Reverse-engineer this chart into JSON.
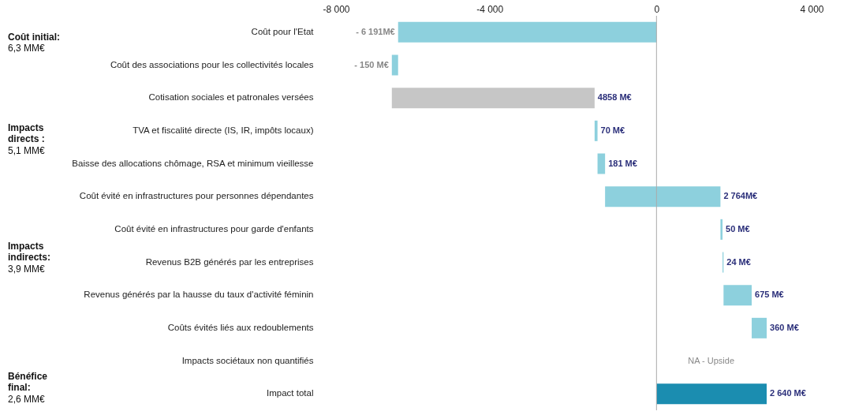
{
  "chart_data": {
    "type": "bar",
    "orientation": "horizontal",
    "categories": [
      "Coût pour l'Etat",
      "Coût des associations pour les collectivités locales",
      "Cotisation sociales et patronales versées",
      "TVA et fiscalité directe (IS, IR, impôts locaux)",
      "Baisse des allocations chômage, RSA et minimum vieillesse",
      "Coût évité en infrastructures pour personnes dépendantes",
      "Coût évité en infrastructures pour garde d'enfants",
      "Revenus B2B générés par les entreprises",
      "Revenus générés par la hausse du taux d'activité féminin",
      "Coûts évités liés aux redoublements",
      "Impacts sociétaux non quantifiés",
      "Impact total"
    ],
    "values": [
      -6191,
      -150,
      4858,
      70,
      181,
      2764,
      50,
      24,
      675,
      360,
      null,
      2640
    ],
    "base": [
      0,
      -6191,
      -6341,
      -1483,
      -1413,
      -1232,
      1532,
      1582,
      1606,
      2281,
      null,
      0
    ],
    "colors": [
      "#8dd0dd",
      "#8dd0dd",
      "#c6c6c6",
      "#8dd0dd",
      "#8dd0dd",
      "#8dd0dd",
      "#8dd0dd",
      "#8dd0dd",
      "#8dd0dd",
      "#8dd0dd",
      "#8dd0dd",
      "#1b8db0"
    ],
    "value_labels": [
      "- 6 191M€",
      "- 150 M€",
      "4858 M€",
      "70 M€",
      "181 M€",
      "2 764M€",
      "50 M€",
      "24 M€",
      "675 M€",
      "360 M€",
      null,
      "2 640 M€"
    ],
    "xlim": [
      -8000,
      4000
    ],
    "xticks": [
      {
        "value": -8000,
        "label": "-8 000"
      },
      {
        "value": -4000,
        "label": "-4 000"
      },
      0,
      {
        "value": 4000,
        "label": "4 000"
      }
    ],
    "ref_lines": [
      {
        "axis": "x",
        "value": 0,
        "color": "#aaaaaa"
      }
    ],
    "grid": false,
    "annotations": [
      "Coût initial: 6,3 MM€",
      "Impacts directs : 5,1 MM€",
      "Impacts indirects: 3,9 MM€",
      "Bénéfice final: 2,6 MM€",
      "NA - Upside"
    ]
  }
}
